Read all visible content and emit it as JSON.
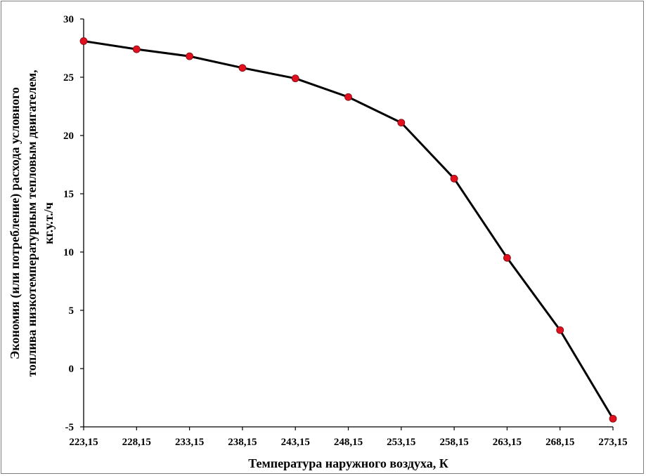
{
  "chart_data": {
    "type": "line",
    "title": "",
    "xlabel": "Температура наружного воздуха, К",
    "ylabel_lines": [
      "Экономия (или потребление) расхода условного",
      "топлива  низкотемпературным тепловым двигателем,",
      "кг.у.т./ч"
    ],
    "ylim": [
      -5,
      30
    ],
    "yticks": [
      "30",
      "25",
      "20",
      "15",
      "10",
      "5",
      "0",
      "-5"
    ],
    "ytick_values": [
      30,
      25,
      20,
      15,
      10,
      5,
      0,
      -5
    ],
    "categories": [
      "223,15",
      "228,15",
      "233,15",
      "238,15",
      "243,15",
      "248,15",
      "253,15",
      "258,15",
      "263,15",
      "268,15",
      "273,15"
    ],
    "series": [
      {
        "values": [
          28.1,
          27.4,
          26.8,
          25.8,
          24.9,
          23.3,
          21.1,
          16.3,
          9.5,
          3.3,
          -4.3
        ],
        "line_color": "#000000",
        "marker_color": "#e0101e"
      }
    ],
    "grid": false,
    "legend": "none"
  }
}
